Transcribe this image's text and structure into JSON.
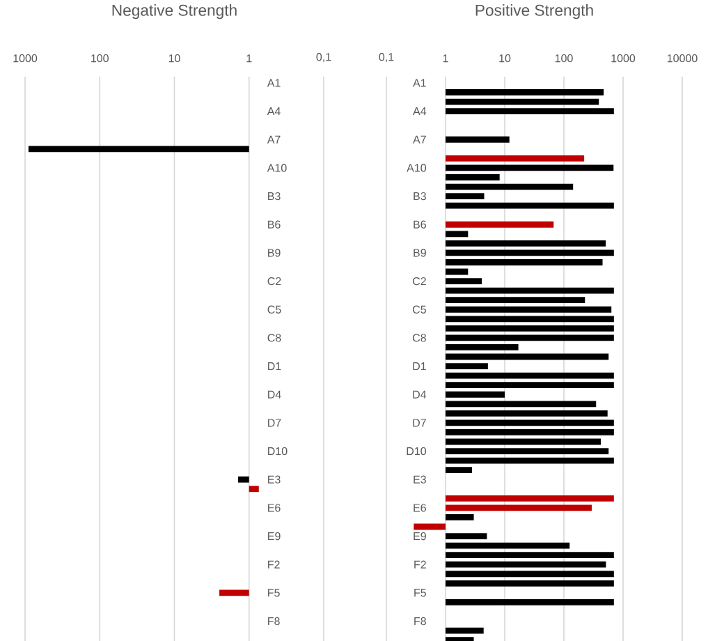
{
  "chart_data": [
    {
      "type": "bar",
      "orientation": "horizontal",
      "title": "Negative Strength",
      "log": "x",
      "grid": "x",
      "xlim": [
        1000,
        0.1
      ],
      "xticks": [
        1000,
        100,
        10,
        1,
        {
          "value": 0.1,
          "label": "0,1"
        }
      ],
      "categories": [
        "A1",
        null,
        null,
        "A4",
        null,
        null,
        "A7",
        null,
        null,
        "A10",
        null,
        null,
        "B3",
        null,
        null,
        "B6",
        null,
        null,
        "B9",
        null,
        null,
        "C2",
        null,
        null,
        "C5",
        null,
        null,
        "C8",
        null,
        null,
        "D1",
        null,
        null,
        "D4",
        null,
        null,
        "D7",
        null,
        null,
        "D10",
        null,
        null,
        "E3",
        null,
        null,
        "E6",
        null,
        null,
        "E9",
        null,
        null,
        "F2",
        null,
        null,
        "F5",
        null,
        null,
        "F8",
        null,
        null
      ],
      "values": [
        null,
        null,
        null,
        null,
        null,
        null,
        null,
        899,
        null,
        null,
        null,
        null,
        null,
        null,
        null,
        null,
        null,
        null,
        null,
        null,
        null,
        null,
        null,
        null,
        null,
        null,
        null,
        null,
        null,
        null,
        null,
        null,
        null,
        null,
        null,
        null,
        null,
        null,
        null,
        null,
        null,
        null,
        0.4,
        -0.26,
        null,
        null,
        null,
        null,
        null,
        null,
        null,
        null,
        null,
        null,
        1.5,
        null,
        null,
        null,
        null,
        null
      ],
      "base": [
        null,
        null,
        null,
        null,
        null,
        null,
        null,
        1,
        null,
        null,
        null,
        null,
        null,
        null,
        null,
        null,
        null,
        null,
        null,
        null,
        null,
        null,
        null,
        null,
        null,
        null,
        null,
        null,
        null,
        null,
        null,
        null,
        null,
        null,
        null,
        null,
        null,
        null,
        null,
        null,
        null,
        null,
        1,
        1,
        null,
        null,
        null,
        null,
        null,
        null,
        null,
        null,
        null,
        null,
        1,
        null,
        null,
        null,
        null,
        null
      ],
      "colors": [
        "#000000",
        "#000000",
        "#000000",
        "#000000",
        "#000000",
        "#000000",
        "#000000",
        "#000000",
        "#000000",
        "#000000",
        "#000000",
        "#000000",
        "#000000",
        "#000000",
        "#000000",
        "#000000",
        "#000000",
        "#000000",
        "#000000",
        "#000000",
        "#000000",
        "#000000",
        "#000000",
        "#000000",
        "#000000",
        "#000000",
        "#000000",
        "#000000",
        "#000000",
        "#000000",
        "#000000",
        "#000000",
        "#000000",
        "#000000",
        "#000000",
        "#000000",
        "#000000",
        "#000000",
        "#000000",
        "#000000",
        "#000000",
        "#000000",
        "#000000",
        "#c00000",
        "#000000",
        "#000000",
        "#000000",
        "#000000",
        "#000000",
        "#000000",
        "#000000",
        "#000000",
        "#000000",
        "#000000",
        "#c00000",
        "#000000",
        "#000000",
        "#000000",
        "#000000",
        "#000000"
      ]
    },
    {
      "type": "bar",
      "orientation": "horizontal",
      "title": "Positive Strength",
      "log": "x",
      "grid": "x",
      "xlim": [
        0.1,
        10000
      ],
      "xticks": [
        {
          "value": 0.1,
          "label": "0,1"
        },
        1,
        10,
        100,
        1000,
        10000
      ],
      "categories": [
        "A1",
        null,
        null,
        "A4",
        null,
        null,
        "A7",
        null,
        null,
        "A10",
        null,
        null,
        "B3",
        null,
        null,
        "B6",
        null,
        null,
        "B9",
        null,
        null,
        "C2",
        null,
        null,
        "C5",
        null,
        null,
        "C8",
        null,
        null,
        "D1",
        null,
        null,
        "D4",
        null,
        null,
        "D7",
        null,
        null,
        "D10",
        null,
        null,
        "E3",
        null,
        null,
        "E6",
        null,
        null,
        "E9",
        null,
        null,
        "F2",
        null,
        null,
        "F5",
        null,
        null,
        "F8",
        null,
        null
      ],
      "values": [
        null,
        469,
        389,
        699,
        null,
        null,
        11,
        null,
        219,
        689,
        7.2,
        142,
        3.5,
        699,
        null,
        66,
        1.4,
        509,
        699,
        449,
        1.4,
        3.1,
        699,
        226,
        634,
        699,
        699,
        699,
        16,
        569,
        4.2,
        699,
        699,
        9,
        349,
        546,
        699,
        699,
        419,
        569,
        699,
        1.8,
        null,
        null,
        699,
        295,
        2.0,
        -0.71,
        4.0,
        124,
        699,
        513,
        699,
        699,
        null,
        699,
        null,
        null,
        3.4,
        2.0
      ],
      "base": [
        null,
        1,
        1,
        1,
        null,
        null,
        1,
        null,
        1,
        1,
        1,
        1,
        1,
        1,
        null,
        1,
        1,
        1,
        1,
        1,
        1,
        1,
        1,
        1,
        1,
        1,
        1,
        1,
        1,
        1,
        1,
        1,
        1,
        1,
        1,
        1,
        1,
        1,
        1,
        1,
        1,
        1,
        null,
        null,
        1,
        1,
        1,
        1,
        1,
        1,
        1,
        1,
        1,
        1,
        null,
        1,
        null,
        null,
        1,
        1
      ],
      "colors": [
        "#000000",
        "#000000",
        "#000000",
        "#000000",
        "#000000",
        "#000000",
        "#000000",
        "#000000",
        "#c00000",
        "#000000",
        "#000000",
        "#000000",
        "#000000",
        "#000000",
        "#000000",
        "#c00000",
        "#000000",
        "#000000",
        "#000000",
        "#000000",
        "#000000",
        "#000000",
        "#000000",
        "#000000",
        "#000000",
        "#000000",
        "#000000",
        "#000000",
        "#000000",
        "#000000",
        "#000000",
        "#000000",
        "#000000",
        "#000000",
        "#000000",
        "#000000",
        "#000000",
        "#000000",
        "#000000",
        "#000000",
        "#000000",
        "#000000",
        "#000000",
        "#000000",
        "#c00000",
        "#c00000",
        "#000000",
        "#c00000",
        "#000000",
        "#000000",
        "#000000",
        "#000000",
        "#000000",
        "#000000",
        "#000000",
        "#000000",
        "#000000",
        "#000000",
        "#000000",
        "#000000"
      ]
    }
  ]
}
